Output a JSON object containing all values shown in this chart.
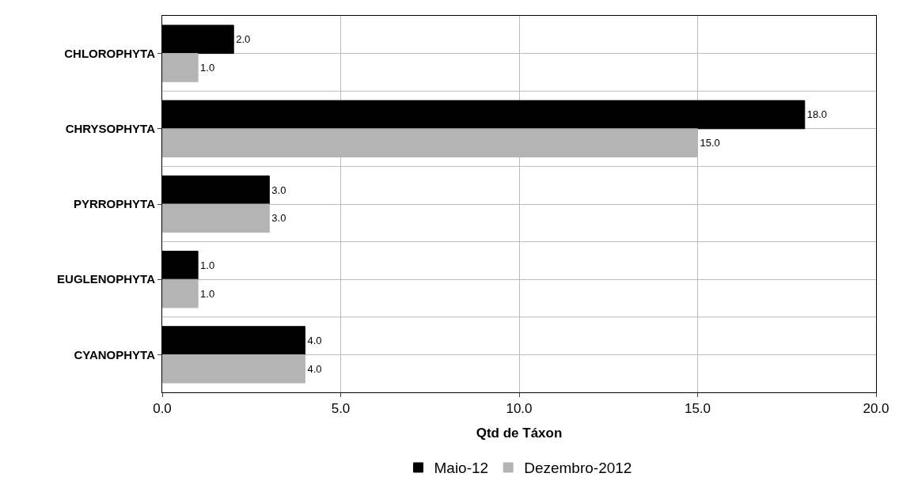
{
  "chart_data": {
    "type": "bar",
    "orientation": "horizontal",
    "xlabel": "Qtd de Táxon",
    "categories": [
      "CHLOROPHYTA",
      "CHRYSOPHYTA",
      "PYRROPHYTA",
      "EUGLENOPHYTA",
      "CYANOPHYTA"
    ],
    "series": [
      {
        "name": "Maio-12",
        "color": "#000000",
        "values": [
          2,
          18,
          3,
          1,
          4
        ],
        "value_labels": [
          "2.0",
          "18.0",
          "3.0",
          "1.0",
          "4.0"
        ]
      },
      {
        "name": "Dezembro-2012",
        "color": "#b4b4b4",
        "values": [
          1,
          15,
          3,
          1,
          4
        ],
        "value_labels": [
          "1.0",
          "15.0",
          "3.0",
          "1.0",
          "4.0"
        ]
      }
    ],
    "xlim": [
      0,
      20
    ],
    "xticks": [
      {
        "value": 0,
        "label": "0.0"
      },
      {
        "value": 5,
        "label": "5.0"
      },
      {
        "value": 10,
        "label": "10.0"
      },
      {
        "value": 15,
        "label": "15.0"
      },
      {
        "value": 20,
        "label": "20.0"
      }
    ],
    "grid": true,
    "legend": "bottom"
  }
}
